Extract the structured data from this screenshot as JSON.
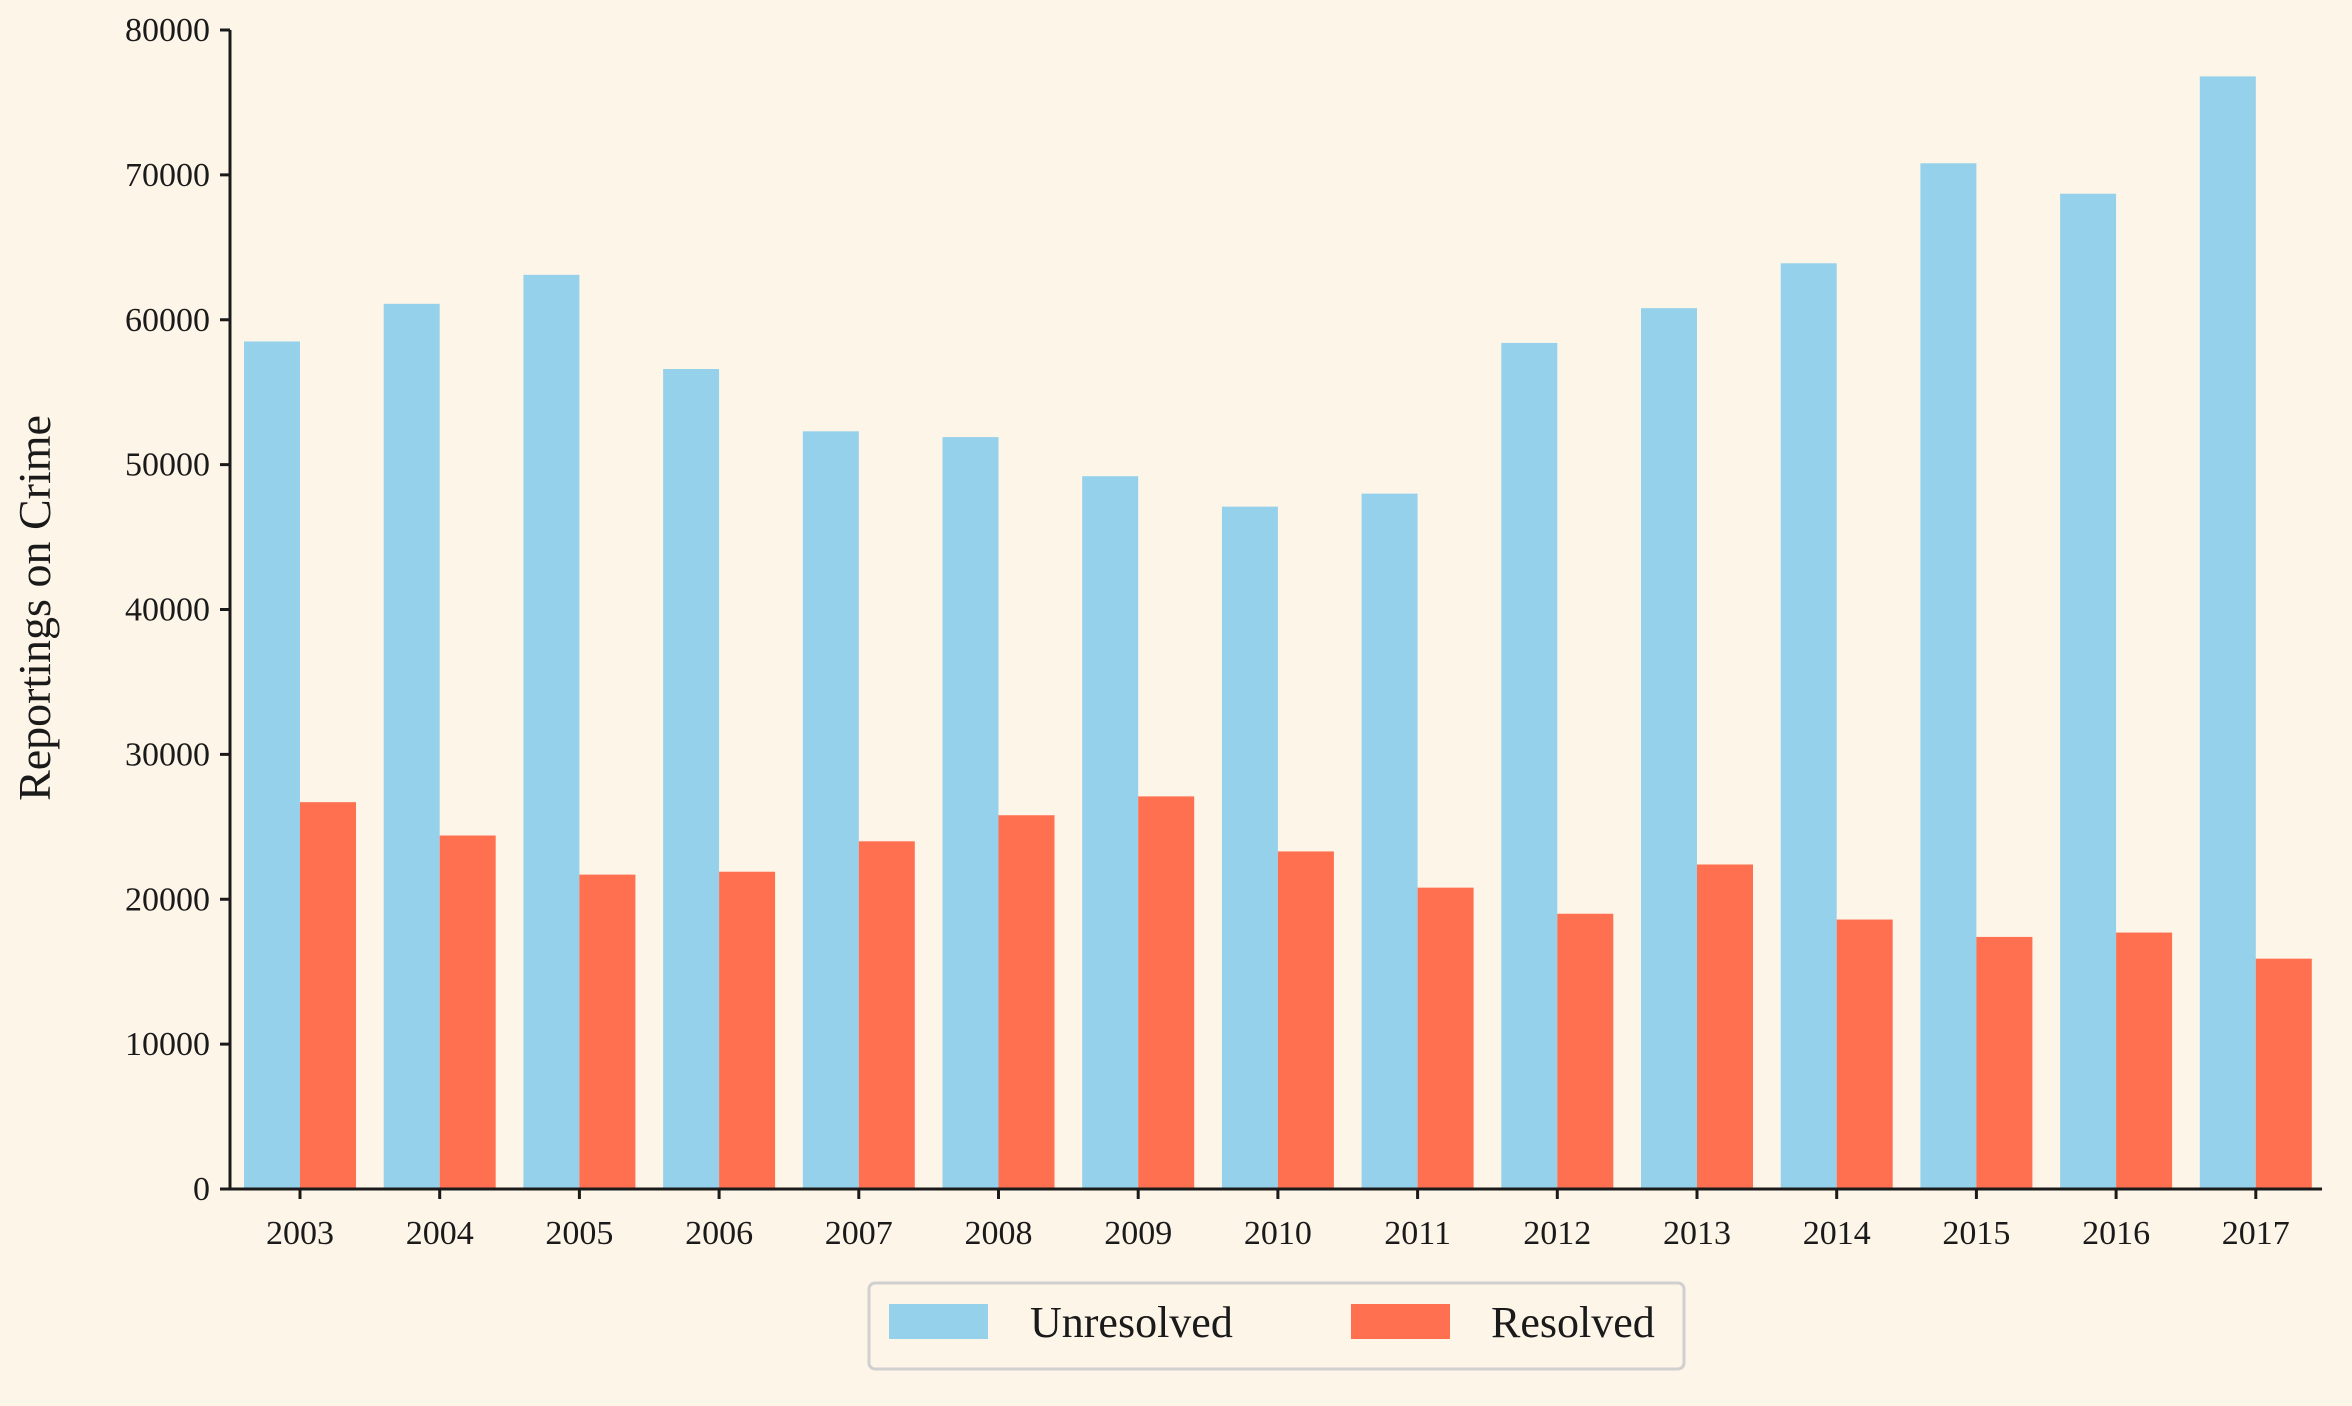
{
  "chart_data": {
    "type": "bar",
    "title": "",
    "xlabel": "",
    "ylabel": "Reportings on Crime",
    "categories": [
      "2003",
      "2004",
      "2005",
      "2006",
      "2007",
      "2008",
      "2009",
      "2010",
      "2011",
      "2012",
      "2013",
      "2014",
      "2015",
      "2016",
      "2017"
    ],
    "series": [
      {
        "name": "Unresolved",
        "color": "#95d1ea",
        "values": [
          58500,
          61100,
          63100,
          56600,
          52300,
          51900,
          49200,
          47100,
          48000,
          58400,
          60800,
          63900,
          70800,
          68700,
          76800
        ]
      },
      {
        "name": "Resolved",
        "color": "#ff7050",
        "values": [
          26700,
          24400,
          21700,
          21900,
          24000,
          25800,
          27100,
          23300,
          20800,
          19000,
          22400,
          18600,
          17400,
          17700,
          15900
        ]
      }
    ],
    "ylim": [
      0,
      80000
    ],
    "yticks": [
      0,
      10000,
      20000,
      30000,
      40000,
      50000,
      60000,
      70000,
      80000
    ],
    "grid": false,
    "legend_position": "bottom-center"
  },
  "colors": {
    "background": "#fef5e9",
    "axis": "#1a1a1a",
    "legend_border": "#d0d0d0"
  }
}
